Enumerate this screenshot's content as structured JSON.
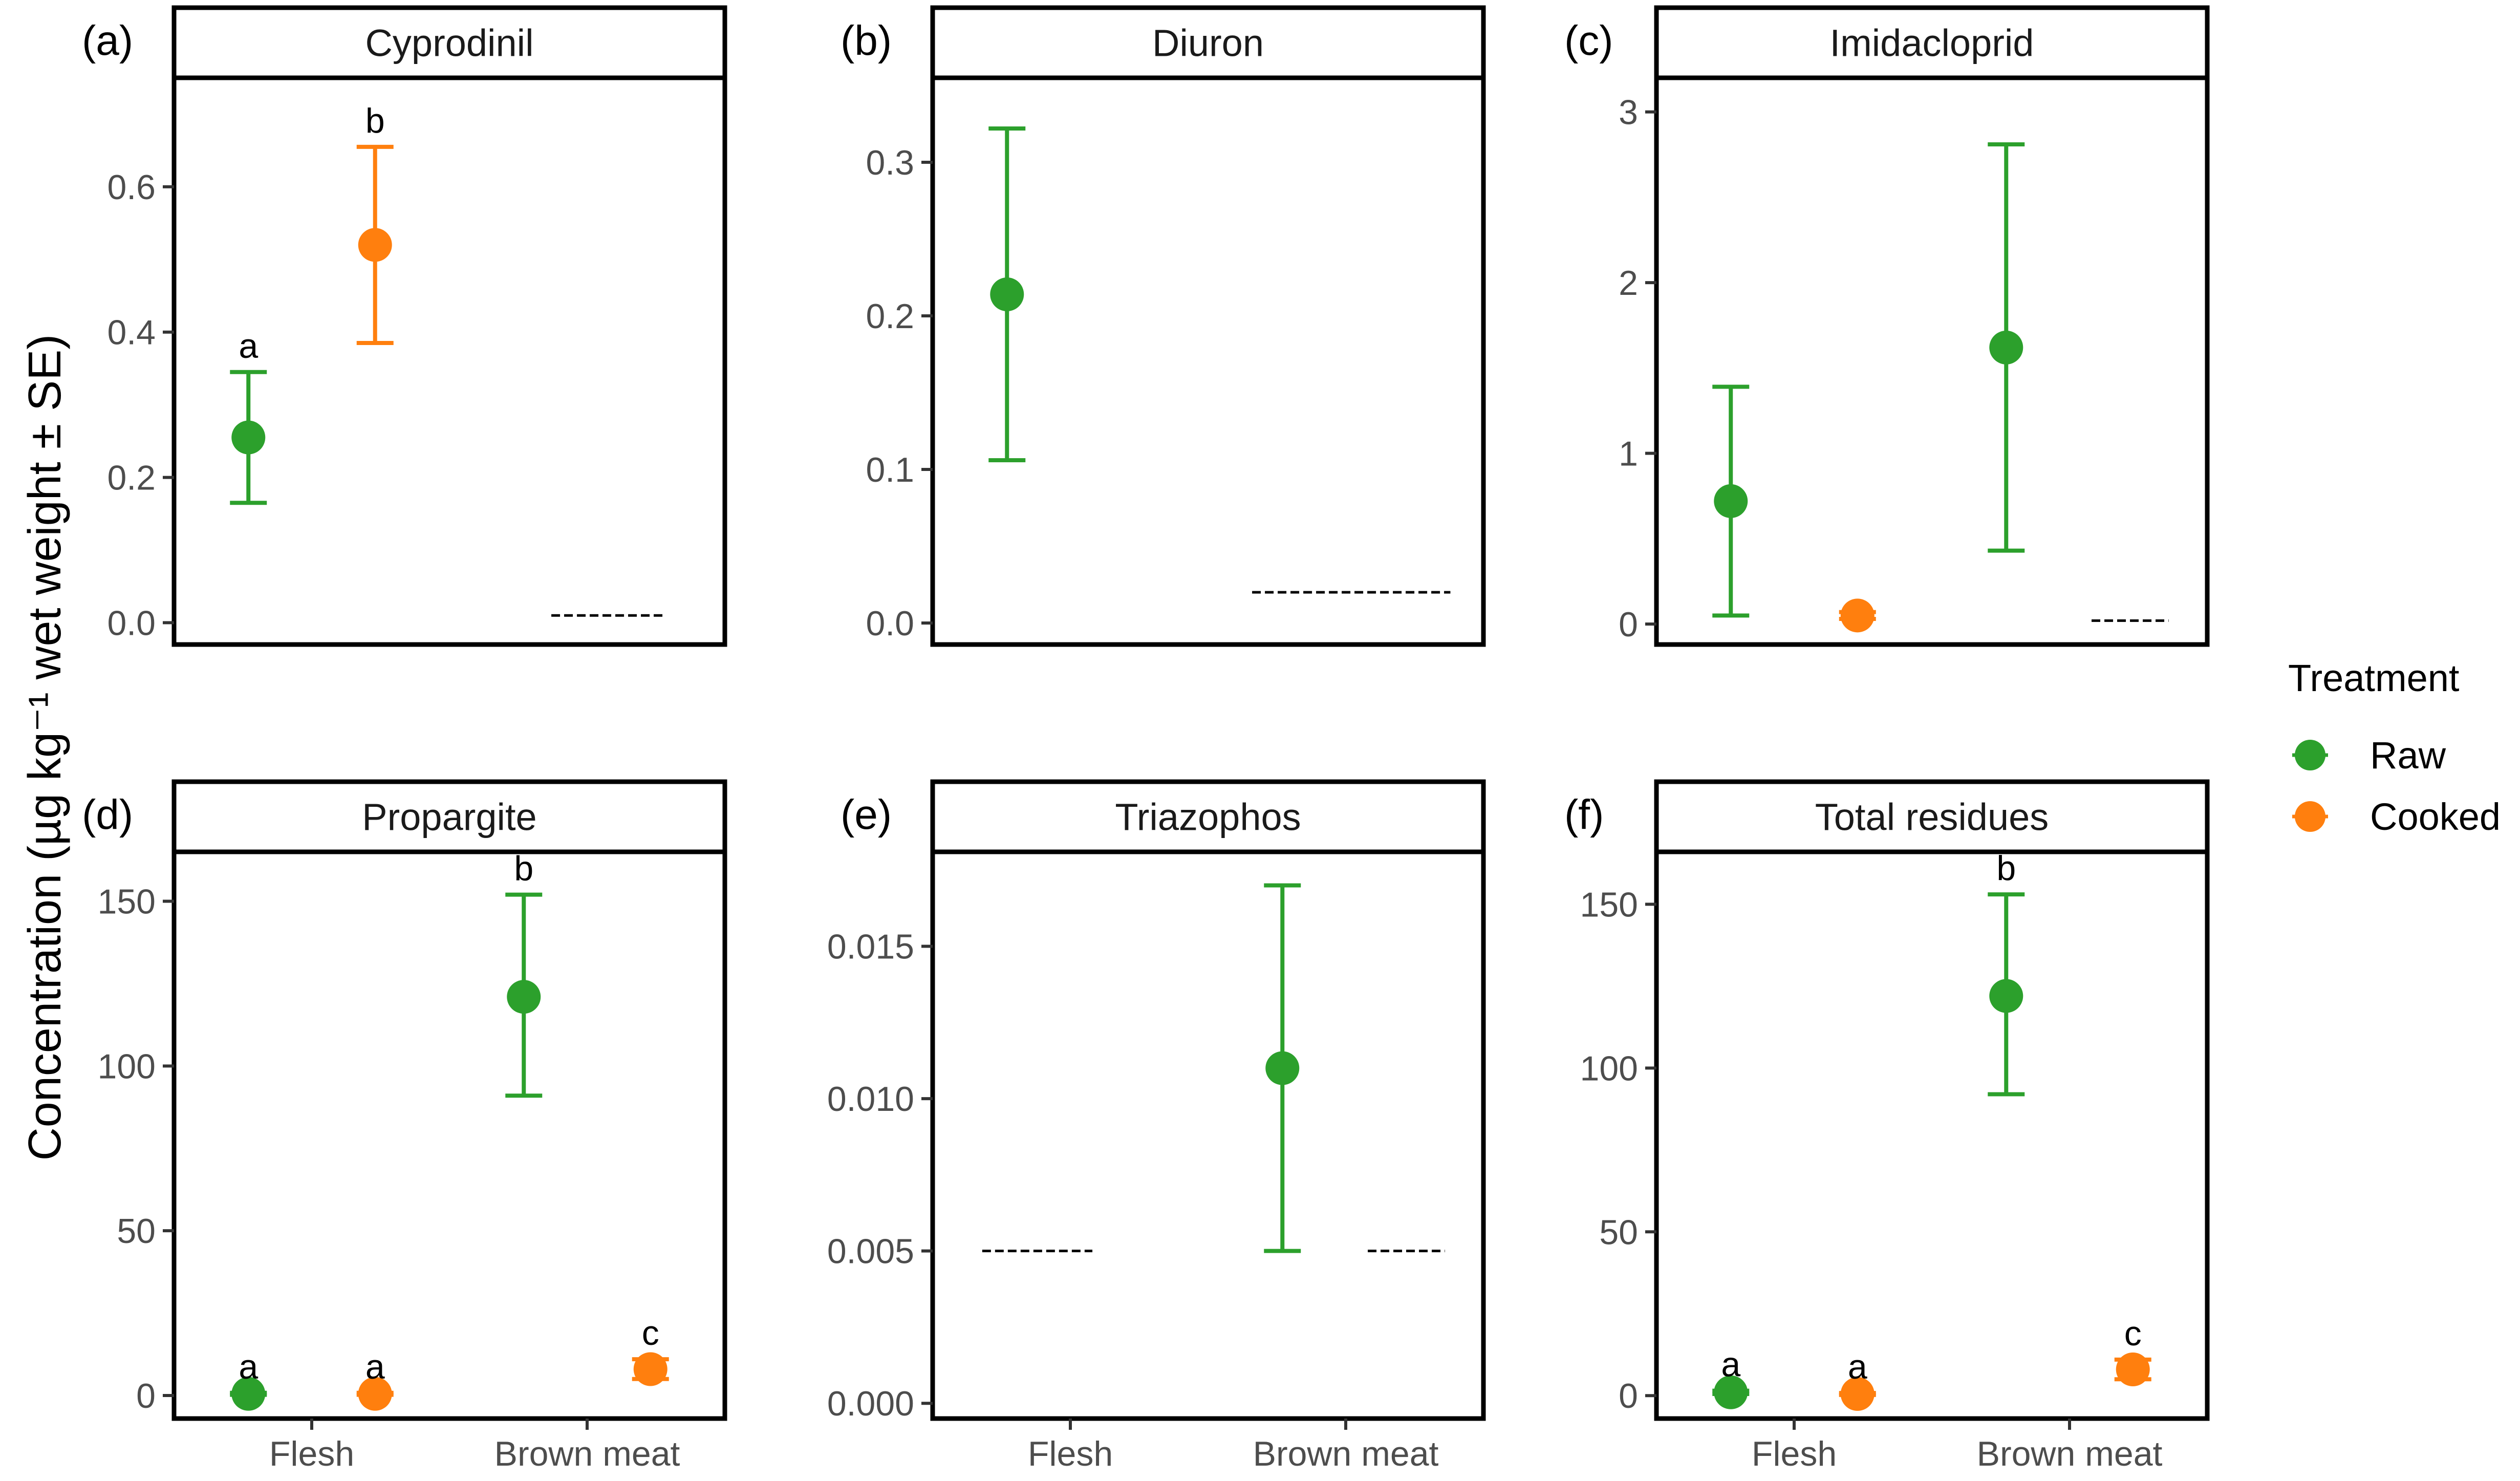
{
  "figure": {
    "y_axis_label": "Concentration (µg kg⁻¹ wet weight ± SE)",
    "legend": {
      "title": "Treatment",
      "entries": [
        {
          "name": "Raw",
          "color": "#2ca02c"
        },
        {
          "name": "Cooked",
          "color": "#ff7f0e"
        }
      ]
    },
    "x_categories": [
      "Flesh",
      "Brown meat"
    ],
    "bottom_x_labels": [
      {
        "panel": 3,
        "labels": [
          "Flesh",
          "Brown meat"
        ]
      },
      {
        "panel": 4,
        "labels": [
          "Flesh",
          "Brown meat"
        ]
      },
      {
        "panel": 5,
        "labels": [
          "Flesh",
          "Brown meat"
        ]
      }
    ]
  },
  "chart_data": [
    {
      "type": "scatter",
      "tag": "(a)",
      "title": "Cyprodinil",
      "categories": [
        "Flesh",
        "Brown meat"
      ],
      "ylim": [
        -0.03,
        0.75
      ],
      "yticks": [
        0.0,
        0.2,
        0.4,
        0.6
      ],
      "ytick_labels": [
        "0.0",
        "0.2",
        "0.4",
        "0.6"
      ],
      "series": [
        {
          "name": "Raw",
          "color": "#2ca02c",
          "points": [
            {
              "category": "Flesh",
              "value": 0.255,
              "lower": 0.165,
              "upper": 0.345,
              "label": "a"
            }
          ]
        },
        {
          "name": "Cooked",
          "color": "#ff7f0e",
          "points": [
            {
              "category": "Flesh",
              "value": 0.52,
              "lower": 0.385,
              "upper": 0.655,
              "label": "b"
            }
          ]
        }
      ],
      "not_detected": [
        {
          "category": "Brown meat",
          "value": 0.01,
          "span": "full"
        }
      ]
    },
    {
      "type": "scatter",
      "tag": "(b)",
      "title": "Diuron",
      "categories": [
        "Flesh",
        "Brown meat"
      ],
      "ylim": [
        -0.014,
        0.355
      ],
      "yticks": [
        0.0,
        0.1,
        0.2,
        0.3
      ],
      "ytick_labels": [
        "0.0",
        "0.1",
        "0.2",
        "0.3"
      ],
      "series": [
        {
          "name": "Raw",
          "color": "#2ca02c",
          "points": [
            {
              "category": "Flesh",
              "value": 0.214,
              "lower": 0.106,
              "upper": 0.322,
              "label": ""
            }
          ]
        },
        {
          "name": "Cooked",
          "color": "#ff7f0e",
          "points": []
        }
      ],
      "not_detected": [
        {
          "category": "Brown meat",
          "value": 0.02,
          "span": "wide"
        }
      ]
    },
    {
      "type": "scatter",
      "tag": "(c)",
      "title": "Imidacloprid",
      "categories": [
        "Flesh",
        "Brown meat"
      ],
      "ylim": [
        -0.12,
        3.2
      ],
      "yticks": [
        0,
        1,
        2,
        3
      ],
      "ytick_labels": [
        "0",
        "1",
        "2",
        "3"
      ],
      "series": [
        {
          "name": "Raw",
          "color": "#2ca02c",
          "points": [
            {
              "category": "Flesh",
              "value": 0.72,
              "lower": 0.05,
              "upper": 1.39,
              "label": ""
            },
            {
              "category": "Brown meat",
              "value": 1.62,
              "lower": 0.43,
              "upper": 2.81,
              "label": ""
            }
          ]
        },
        {
          "name": "Cooked",
          "color": "#ff7f0e",
          "points": [
            {
              "category": "Flesh",
              "value": 0.05,
              "lower": 0.03,
              "upper": 0.07,
              "label": ""
            }
          ]
        }
      ],
      "not_detected": [
        {
          "category": "Brown meat",
          "value": 0.02,
          "span": "cooked"
        }
      ]
    },
    {
      "type": "scatter",
      "tag": "(d)",
      "title": "Propargite",
      "categories": [
        "Flesh",
        "Brown meat"
      ],
      "ylim": [
        -7,
        165
      ],
      "yticks": [
        0,
        50,
        100,
        150
      ],
      "ytick_labels": [
        "0",
        "50",
        "100",
        "150"
      ],
      "series": [
        {
          "name": "Raw",
          "color": "#2ca02c",
          "points": [
            {
              "category": "Flesh",
              "value": 0.5,
              "lower": 0.2,
              "upper": 0.8,
              "label": "a"
            },
            {
              "category": "Brown meat",
              "value": 121,
              "lower": 91,
              "upper": 152,
              "label": "b"
            }
          ]
        },
        {
          "name": "Cooked",
          "color": "#ff7f0e",
          "points": [
            {
              "category": "Flesh",
              "value": 0.5,
              "lower": 0.2,
              "upper": 0.8,
              "label": "a"
            },
            {
              "category": "Brown meat",
              "value": 8,
              "lower": 5,
              "upper": 11,
              "label": "c"
            }
          ]
        }
      ],
      "not_detected": []
    },
    {
      "type": "scatter",
      "tag": "(e)",
      "title": "Triazophos",
      "categories": [
        "Flesh",
        "Brown meat"
      ],
      "ylim": [
        -0.0005,
        0.0181
      ],
      "yticks": [
        0.0,
        0.005,
        0.01,
        0.015
      ],
      "ytick_labels": [
        "0.000",
        "0.005",
        "0.010",
        "0.015"
      ],
      "series": [
        {
          "name": "Raw",
          "color": "#2ca02c",
          "points": [
            {
              "category": "Brown meat",
              "value": 0.011,
              "lower": 0.005,
              "upper": 0.017,
              "label": ""
            }
          ]
        },
        {
          "name": "Cooked",
          "color": "#ff7f0e",
          "points": []
        }
      ],
      "not_detected": [
        {
          "category": "Flesh",
          "value": 0.005,
          "span": "full"
        },
        {
          "category": "Brown meat",
          "value": 0.005,
          "span": "cooked"
        }
      ]
    },
    {
      "type": "scatter",
      "tag": "(f)",
      "title": "Total residues",
      "categories": [
        "Flesh",
        "Brown meat"
      ],
      "ylim": [
        -7,
        166
      ],
      "yticks": [
        0,
        50,
        100,
        150
      ],
      "ytick_labels": [
        "0",
        "50",
        "100",
        "150"
      ],
      "series": [
        {
          "name": "Raw",
          "color": "#2ca02c",
          "points": [
            {
              "category": "Flesh",
              "value": 1,
              "lower": 0.5,
              "upper": 1.5,
              "label": "a"
            },
            {
              "category": "Brown meat",
              "value": 122,
              "lower": 92,
              "upper": 153,
              "label": "b"
            }
          ]
        },
        {
          "name": "Cooked",
          "color": "#ff7f0e",
          "points": [
            {
              "category": "Flesh",
              "value": 0.5,
              "lower": 0.2,
              "upper": 0.8,
              "label": "a"
            },
            {
              "category": "Brown meat",
              "value": 8,
              "lower": 5,
              "upper": 11,
              "label": "c"
            }
          ]
        }
      ],
      "not_detected": []
    }
  ]
}
